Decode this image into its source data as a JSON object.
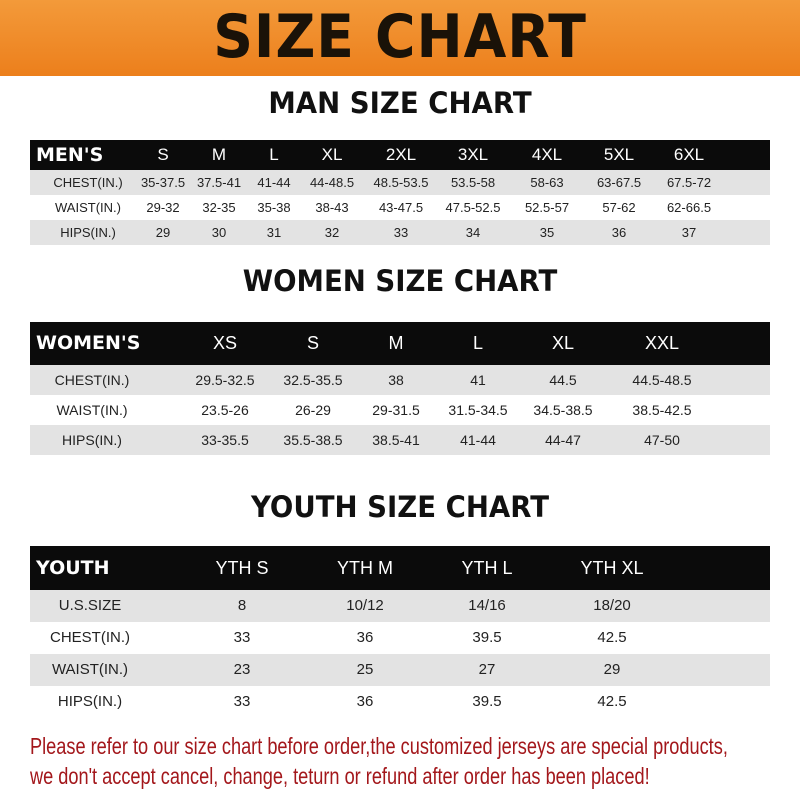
{
  "banner": {
    "title": "SIZE CHART",
    "color": "#ee861f"
  },
  "men": {
    "title": "MAN SIZE CHART",
    "header": [
      "MEN'S",
      "S",
      "M",
      "L",
      "XL",
      "2XL",
      "3XL",
      "4XL",
      "5XL",
      "6XL"
    ],
    "rows": [
      [
        "CHEST(IN.)",
        "35-37.5",
        "37.5-41",
        "41-44",
        "44-48.5",
        "48.5-53.5",
        "53.5-58",
        "58-63",
        "63-67.5",
        "67.5-72"
      ],
      [
        "WAIST(IN.)",
        "29-32",
        "32-35",
        "35-38",
        "38-43",
        "43-47.5",
        "47.5-52.5",
        "52.5-57",
        "57-62",
        "62-66.5"
      ],
      [
        "HIPS(IN.)",
        "29",
        "30",
        "31",
        "32",
        "33",
        "34",
        "35",
        "36",
        "37"
      ]
    ]
  },
  "women": {
    "title": "WOMEN SIZE CHART",
    "header": [
      "WOMEN'S",
      "XS",
      "S",
      "M",
      "L",
      "XL",
      "XXL"
    ],
    "rows": [
      [
        "CHEST(IN.)",
        "29.5-32.5",
        "32.5-35.5",
        "38",
        "41",
        "44.5",
        "44.5-48.5"
      ],
      [
        "WAIST(IN.)",
        "23.5-26",
        "26-29",
        "29-31.5",
        "31.5-34.5",
        "34.5-38.5",
        "38.5-42.5"
      ],
      [
        "HIPS(IN.)",
        "33-35.5",
        "35.5-38.5",
        "38.5-41",
        "41-44",
        "44-47",
        "47-50"
      ]
    ]
  },
  "youth": {
    "title": "YOUTH SIZE CHART",
    "header": [
      "YOUTH",
      "YTH S",
      "YTH M",
      "YTH L",
      "YTH XL"
    ],
    "rows": [
      [
        "U.S.SIZE",
        "8",
        "10/12",
        "14/16",
        "18/20"
      ],
      [
        "CHEST(IN.)",
        "33",
        "36",
        "39.5",
        "42.5"
      ],
      [
        "WAIST(IN.)",
        "23",
        "25",
        "27",
        "29"
      ],
      [
        "HIPS(IN.)",
        "33",
        "36",
        "39.5",
        "42.5"
      ]
    ]
  },
  "notice": {
    "line1": "Please refer to our size chart before order,the customized jerseys are special products,",
    "line2": "we don't accept cancel, change, teturn or refund after order has been placed!",
    "color": "#a3171b"
  }
}
